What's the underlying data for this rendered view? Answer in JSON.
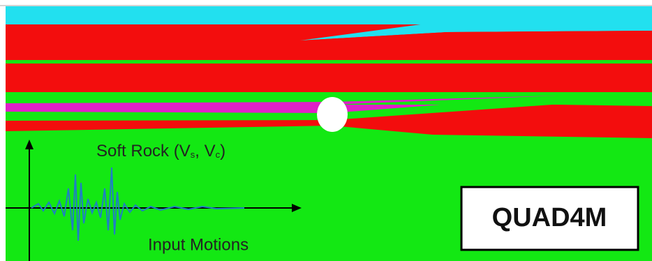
{
  "labels": {
    "soft_rock": [
      "Soft Rock (V",
      "s",
      ", ",
      "V",
      "c",
      ")"
    ],
    "input_motions": "Input Motions",
    "program": "QUAD4M"
  }
}
